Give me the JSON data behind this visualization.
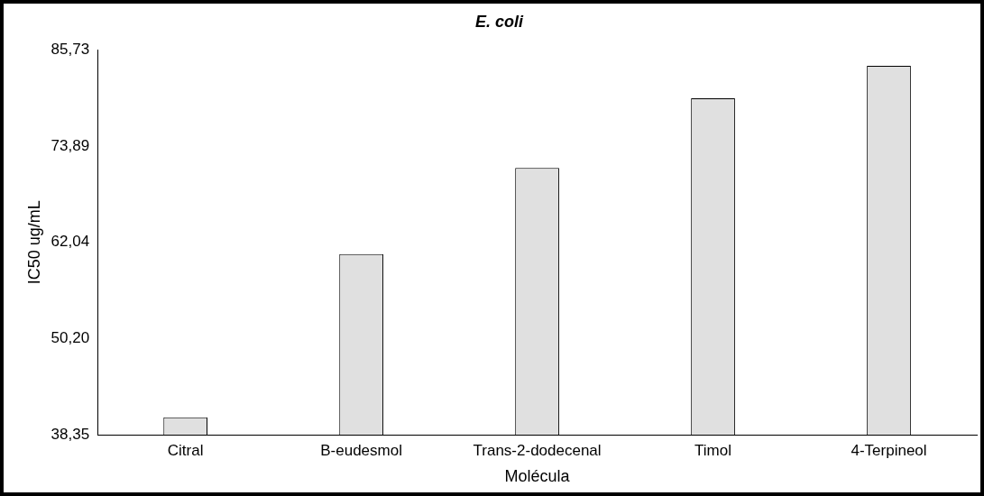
{
  "chart_data": {
    "type": "bar",
    "title": "E. coli",
    "xlabel": "Molécula",
    "ylabel": "IC50 ug/mL",
    "categories": [
      "Citral",
      "B-eudesmol",
      "Trans-2-dodecenal",
      "Timol",
      "4-Terpineol"
    ],
    "values": [
      40.5,
      60.6,
      71.2,
      79.8,
      83.8
    ],
    "color": "#e0e0e0",
    "ylim": [
      38.35,
      85.73
    ],
    "yticks": [
      {
        "value": 38.35,
        "label": "38,35"
      },
      {
        "value": 50.2,
        "label": "50,20"
      },
      {
        "value": 62.04,
        "label": "62,04"
      },
      {
        "value": 73.89,
        "label": "73,89"
      },
      {
        "value": 85.73,
        "label": "85,73"
      }
    ],
    "grid": false,
    "legend": false
  }
}
